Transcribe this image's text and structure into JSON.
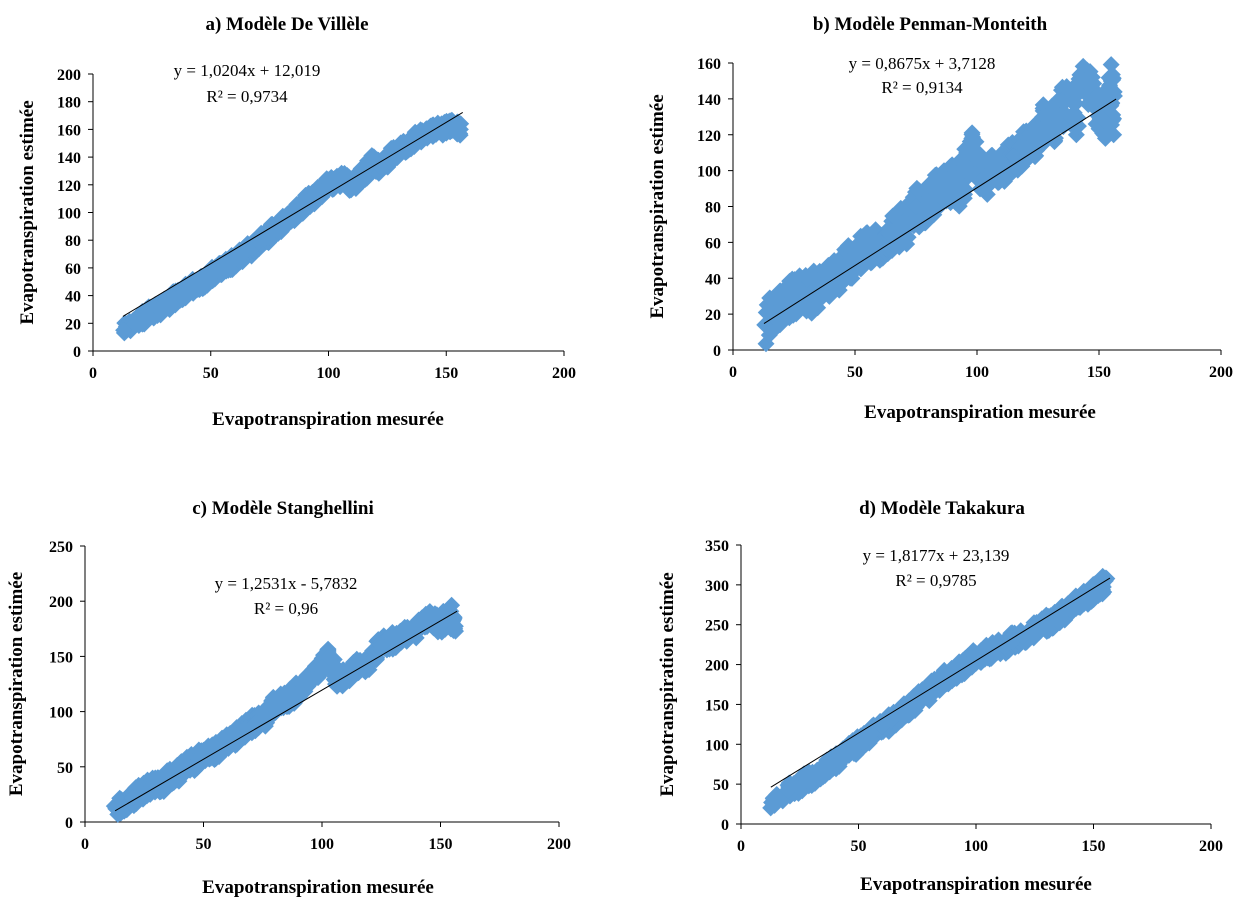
{
  "marker_color": "#5B9BD5",
  "trend_color": "#000000",
  "chart_data": [
    {
      "type": "scatter",
      "panel": "a",
      "title": "a) Modèle De Villèle",
      "xlabel": "Evapotranspiration mesurée",
      "ylabel": "Evapotranspiration estimée",
      "xlim": [
        0,
        200
      ],
      "ylim": [
        0,
        200
      ],
      "xticks": [
        0,
        50,
        100,
        150,
        200
      ],
      "yticks": [
        0,
        20,
        40,
        60,
        80,
        100,
        120,
        140,
        160,
        180,
        200
      ],
      "trendline": {
        "slope": 1.0204,
        "intercept": 12.019,
        "equation": "y = 1,0204x + 12,019",
        "r2": "R² = 0,9734"
      },
      "x_range_data": [
        12.7,
        157
      ],
      "spread": 5,
      "points": [
        [
          13,
          15
        ],
        [
          20,
          23
        ],
        [
          22,
          25
        ],
        [
          25,
          28
        ],
        [
          28,
          30
        ],
        [
          31,
          33
        ],
        [
          34,
          38
        ],
        [
          37,
          40
        ],
        [
          40,
          43
        ],
        [
          44,
          48
        ],
        [
          47,
          50
        ],
        [
          50,
          55
        ],
        [
          53,
          58
        ],
        [
          56,
          62
        ],
        [
          59,
          64
        ],
        [
          62,
          68
        ],
        [
          65,
          72
        ],
        [
          68,
          75
        ],
        [
          70,
          79
        ],
        [
          73,
          82
        ],
        [
          75,
          85
        ],
        [
          78,
          89
        ],
        [
          80,
          92
        ],
        [
          83,
          96
        ],
        [
          86,
          100
        ],
        [
          88,
          103
        ],
        [
          91,
          108
        ],
        [
          94,
          111
        ],
        [
          97,
          115
        ],
        [
          100,
          120
        ],
        [
          103,
          122
        ],
        [
          106,
          125
        ],
        [
          110,
          120
        ],
        [
          115,
          128
        ],
        [
          118,
          138
        ],
        [
          122,
          133
        ],
        [
          126,
          140
        ],
        [
          130,
          145
        ],
        [
          134,
          150
        ],
        [
          138,
          155
        ],
        [
          142,
          158
        ],
        [
          146,
          160
        ],
        [
          150,
          162
        ],
        [
          153,
          163
        ],
        [
          156,
          160
        ]
      ]
    },
    {
      "type": "scatter",
      "panel": "b",
      "title": "b) Modèle Penman-Monteith",
      "xlabel": "Evapotranspiration mesurée",
      "ylabel": "Evapotranspiration estimée",
      "xlim": [
        0,
        200
      ],
      "ylim": [
        0,
        160
      ],
      "xticks": [
        0,
        50,
        100,
        150,
        200
      ],
      "yticks": [
        0,
        20,
        40,
        60,
        80,
        100,
        120,
        140,
        160
      ],
      "trendline": {
        "slope": 0.8675,
        "intercept": 3.7128,
        "equation": "y = 0,8675x + 3,7128",
        "r2": "R² = 0,9134"
      },
      "x_range_data": [
        12.7,
        157
      ],
      "spread": 9,
      "points": [
        [
          13,
          14
        ],
        [
          20,
          25
        ],
        [
          25,
          30
        ],
        [
          28,
          33
        ],
        [
          32,
          31
        ],
        [
          36,
          36
        ],
        [
          40,
          38
        ],
        [
          44,
          45
        ],
        [
          48,
          50
        ],
        [
          52,
          52
        ],
        [
          56,
          58
        ],
        [
          60,
          56
        ],
        [
          64,
          65
        ],
        [
          68,
          68
        ],
        [
          72,
          70
        ],
        [
          75,
          80
        ],
        [
          78,
          78
        ],
        [
          82,
          85
        ],
        [
          85,
          90
        ],
        [
          88,
          95
        ],
        [
          92,
          88
        ],
        [
          95,
          100
        ],
        [
          98,
          112
        ],
        [
          102,
          95
        ],
        [
          106,
          100
        ],
        [
          110,
          103
        ],
        [
          115,
          108
        ],
        [
          120,
          112
        ],
        [
          125,
          118
        ],
        [
          128,
          130
        ],
        [
          132,
          125
        ],
        [
          136,
          138
        ],
        [
          140,
          130
        ],
        [
          144,
          150
        ],
        [
          148,
          140
        ],
        [
          152,
          128
        ],
        [
          155,
          150
        ],
        [
          156,
          120
        ]
      ]
    },
    {
      "type": "scatter",
      "panel": "c",
      "title": "c) Modèle Stanghellini",
      "xlabel": "Evapotranspiration mesurée",
      "ylabel": "Evapotranspiration estimée",
      "xlim": [
        0,
        200
      ],
      "ylim": [
        0,
        250
      ],
      "xticks": [
        0,
        50,
        100,
        150,
        200
      ],
      "yticks": [
        0,
        50,
        100,
        150,
        200,
        250
      ],
      "trendline": {
        "slope": 1.2531,
        "intercept": -5.7832,
        "equation": "y = 1,2531x - 5,7832",
        "r2": "R² = 0,96"
      },
      "x_range_data": [
        12.7,
        157
      ],
      "spread": 8,
      "points": [
        [
          13,
          12
        ],
        [
          20,
          22
        ],
        [
          24,
          28
        ],
        [
          28,
          32
        ],
        [
          32,
          34
        ],
        [
          36,
          40
        ],
        [
          40,
          45
        ],
        [
          44,
          52
        ],
        [
          48,
          57
        ],
        [
          52,
          62
        ],
        [
          56,
          65
        ],
        [
          60,
          72
        ],
        [
          64,
          78
        ],
        [
          68,
          85
        ],
        [
          72,
          90
        ],
        [
          76,
          95
        ],
        [
          80,
          105
        ],
        [
          84,
          110
        ],
        [
          88,
          115
        ],
        [
          92,
          125
        ],
        [
          96,
          130
        ],
        [
          100,
          140
        ],
        [
          103,
          150
        ],
        [
          106,
          130
        ],
        [
          110,
          132
        ],
        [
          115,
          140
        ],
        [
          120,
          145
        ],
        [
          125,
          160
        ],
        [
          130,
          165
        ],
        [
          135,
          170
        ],
        [
          140,
          175
        ],
        [
          145,
          185
        ],
        [
          150,
          178
        ],
        [
          154,
          190
        ],
        [
          156,
          175
        ]
      ]
    },
    {
      "type": "scatter",
      "panel": "d",
      "title": "d) Modèle Takakura",
      "xlabel": "Evapotranspiration mesurée",
      "ylabel": "Evapotranspiration estimée",
      "xlim": [
        0,
        200
      ],
      "ylim": [
        0,
        350
      ],
      "xticks": [
        0,
        50,
        100,
        150,
        200
      ],
      "yticks": [
        0,
        50,
        100,
        150,
        200,
        250,
        300,
        350
      ],
      "trendline": {
        "slope": 1.8177,
        "intercept": 23.139,
        "equation": "y = 1,8177x + 23,139",
        "r2": "R² = 0,9785"
      },
      "x_range_data": [
        12.7,
        157
      ],
      "spread": 10,
      "points": [
        [
          13,
          27
        ],
        [
          20,
          42
        ],
        [
          24,
          48
        ],
        [
          28,
          55
        ],
        [
          32,
          62
        ],
        [
          36,
          70
        ],
        [
          40,
          78
        ],
        [
          44,
          88
        ],
        [
          48,
          95
        ],
        [
          52,
          105
        ],
        [
          56,
          115
        ],
        [
          60,
          122
        ],
        [
          64,
          130
        ],
        [
          68,
          138
        ],
        [
          72,
          148
        ],
        [
          76,
          158
        ],
        [
          80,
          165
        ],
        [
          84,
          175
        ],
        [
          88,
          185
        ],
        [
          92,
          192
        ],
        [
          96,
          200
        ],
        [
          100,
          208
        ],
        [
          104,
          215
        ],
        [
          108,
          220
        ],
        [
          112,
          222
        ],
        [
          116,
          230
        ],
        [
          120,
          235
        ],
        [
          124,
          240
        ],
        [
          128,
          248
        ],
        [
          132,
          255
        ],
        [
          136,
          262
        ],
        [
          140,
          270
        ],
        [
          144,
          280
        ],
        [
          148,
          285
        ],
        [
          152,
          295
        ],
        [
          155,
          305
        ]
      ]
    }
  ]
}
